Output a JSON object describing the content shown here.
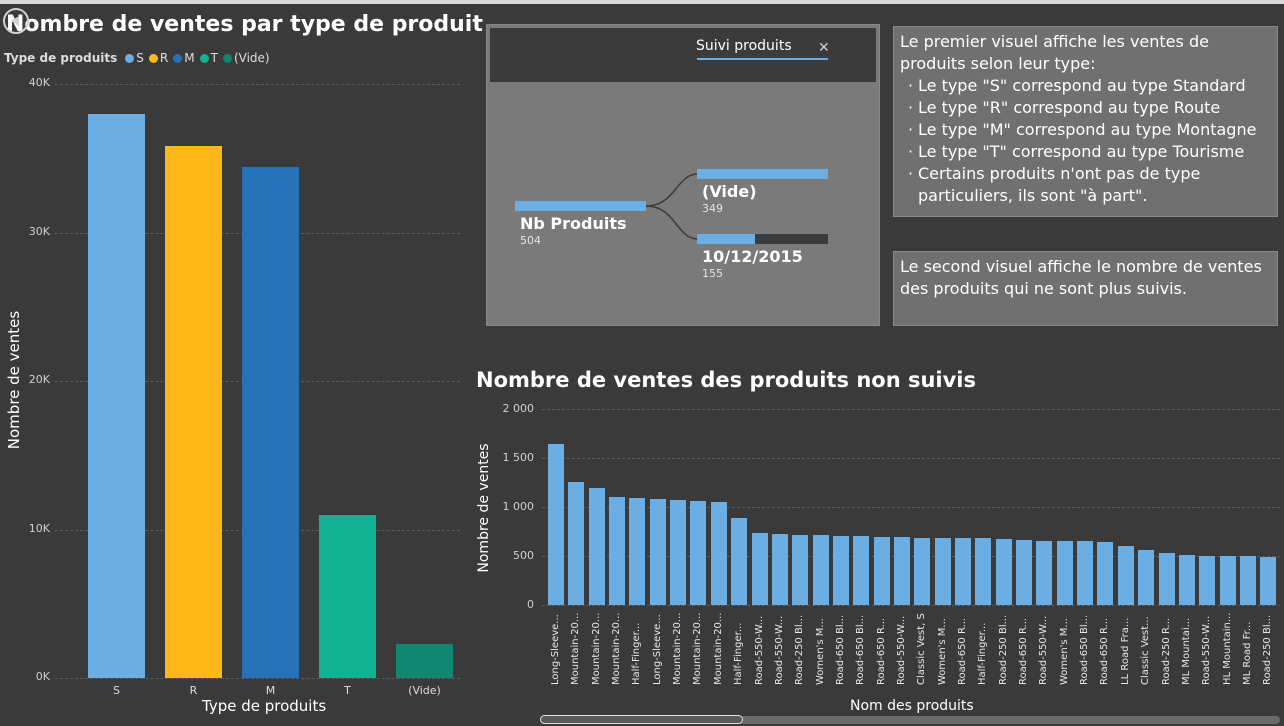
{
  "chart1": {
    "title": "Nombre de ventes par type de produit",
    "legend_title": "Type de produits",
    "xlabel": "Type de produits",
    "ylabel": "Nombre de ventes",
    "yticks": [
      "40K",
      "30K",
      "20K",
      "10K",
      "0K"
    ],
    "colors": {
      "S": "#6aaee3",
      "R": "#fdb718",
      "M": "#2771b8",
      "T": "#11b193",
      "(Vide)": "#118772"
    }
  },
  "chart2": {
    "title": "Nombre de ventes des produits non suivis",
    "xlabel": "Nom des produits",
    "ylabel": "Nombre de ventes",
    "yticks": [
      "2 000",
      "1 500",
      "1 000",
      "500",
      "0"
    ],
    "bar_color": "#6aaee3"
  },
  "decomposition_tree": {
    "header_title": "Suivi produits",
    "close_icon": "close-icon",
    "root": {
      "label": "Nb Produits",
      "value": "504"
    },
    "children": [
      {
        "label": "(Vide)",
        "value": "349",
        "fill": 1.0
      },
      {
        "label": "10/12/2015",
        "value": "155",
        "fill": 0.44
      }
    ]
  },
  "textbox1": {
    "intro": "Le premier visuel affiche les ventes de produits selon leur type:",
    "items": [
      "Le type \"S\" correspond au type Standard",
      "Le type \"R\" correspond au type Route",
      "Le type \"M\" correspond au type Montagne",
      "Le type \"T\" correspond au type Tourisme",
      "Certains produits n'ont pas de type particuliers, ils sont \"à part\"."
    ]
  },
  "textbox2": {
    "text": "Le second visuel affiche le nombre de ventes des produits qui ne sont plus suivis."
  },
  "chart_data": [
    {
      "type": "bar",
      "title": "Nombre de ventes par type de produit",
      "xlabel": "Type de produits",
      "ylabel": "Nombre de ventes",
      "categories": [
        "S",
        "R",
        "M",
        "T",
        "(Vide)"
      ],
      "values": [
        38000,
        35800,
        34400,
        11000,
        2300
      ],
      "ylim": [
        0,
        40000
      ],
      "legend": "top-left",
      "grid": true
    },
    {
      "type": "bar",
      "title": "Nombre de ventes des produits non suivis",
      "xlabel": "Nom des produits",
      "ylabel": "Nombre de ventes",
      "categories": [
        "Long-Sleeve...",
        "Mountain-20...",
        "Mountain-20...",
        "Mountain-20...",
        "Half-Finger...",
        "Long-Sleeve...",
        "Mountain-20...",
        "Mountain-20...",
        "Mountain-20...",
        "Half-Finger...",
        "Road-550-W...",
        "Road-550-W...",
        "Road-250 Bl...",
        "Women's M...",
        "Road-650 Bl...",
        "Road-650 Bl...",
        "Road-650 R...",
        "Road-550-W...",
        "Classic Vest, S",
        "Women's M...",
        "Road-650 R...",
        "Half-Finger...",
        "Road-250 Bl...",
        "Road-650 R...",
        "Road-550-W...",
        "Women's M...",
        "Road-650 Bl...",
        "Road-650 R...",
        "LL Road Fra...",
        "Classic Vest...",
        "Road-250 R...",
        "ML Mountai...",
        "Road-550-W...",
        "HL Mountain...",
        "ML Road Fr...",
        "Road-250 Bl..."
      ],
      "values": [
        1640,
        1260,
        1190,
        1100,
        1090,
        1080,
        1070,
        1060,
        1050,
        890,
        730,
        725,
        715,
        710,
        708,
        705,
        695,
        690,
        685,
        685,
        682,
        680,
        675,
        665,
        655,
        655,
        650,
        640,
        605,
        560,
        535,
        510,
        500,
        495,
        495,
        490
      ],
      "ylim": [
        0,
        2000
      ],
      "grid": true
    }
  ]
}
